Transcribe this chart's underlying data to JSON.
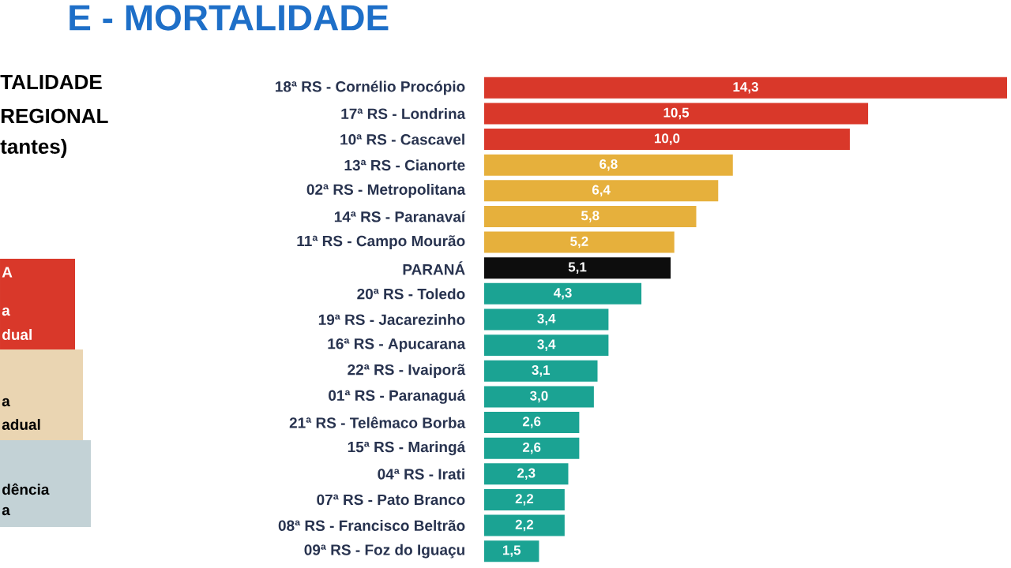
{
  "chart_data": {
    "type": "bar",
    "orientation": "horizontal",
    "title": "E - MORTALIDADE",
    "categories": [
      "18ª RS - Cornélio Procópio",
      "17ª RS - Londrina",
      "10ª RS - Cascavel",
      "13ª RS - Cianorte",
      "02ª RS - Metropolitana",
      "14ª RS - Paranavaí",
      "11ª RS - Campo Mourão",
      "PARANÁ",
      "20ª RS - Toledo",
      "19ª RS - Jacarezinho",
      "16ª RS - Apucarana",
      "22ª RS - Ivaiporã",
      "01ª RS - Paranaguá",
      "21ª RS - Telêmaco Borba",
      "15ª RS - Maringá",
      "04ª RS - Irati",
      "07ª RS - Pato Branco",
      "08ª RS - Francisco Beltrão",
      "09ª RS - Foz do Iguaçu"
    ],
    "values": [
      14.3,
      10.5,
      10.0,
      6.8,
      6.4,
      5.8,
      5.2,
      5.1,
      4.3,
      3.4,
      3.4,
      3.1,
      3.0,
      2.6,
      2.6,
      2.3,
      2.2,
      2.2,
      1.5
    ],
    "colors": [
      "#d9382a",
      "#d9382a",
      "#d9382a",
      "#e6b03c",
      "#e6b03c",
      "#e6b03c",
      "#e6b03c",
      "#0d0d0d",
      "#1ba393",
      "#1ba393",
      "#1ba393",
      "#1ba393",
      "#1ba393",
      "#1ba393",
      "#1ba393",
      "#1ba393",
      "#1ba393",
      "#1ba393",
      "#1ba393"
    ],
    "value_labels": [
      "14,3",
      "10,5",
      "10,0",
      "6,8",
      "6,4",
      "5,8",
      "5,2",
      "5,1",
      "4,3",
      "3,4",
      "3,4",
      "3,1",
      "3,0",
      "2,6",
      "2,6",
      "2,3",
      "2,2",
      "2,2",
      "1,5"
    ],
    "tick_labels": "y",
    "annotations": [
      "TALIDADE",
      "REGIONAL",
      "tantes)",
      "A",
      "a",
      "dual",
      "a",
      "adual",
      "dência",
      "a"
    ]
  }
}
